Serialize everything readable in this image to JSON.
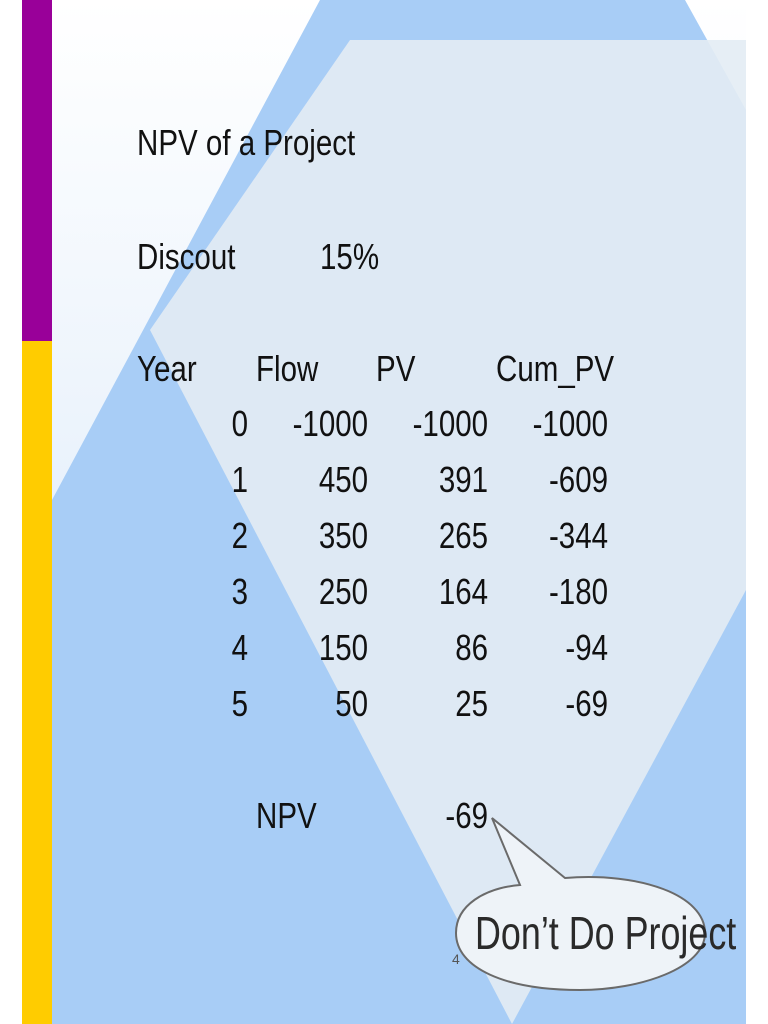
{
  "title": "NPV of a Project",
  "discount": {
    "label": "Discout",
    "value": "15%"
  },
  "table": {
    "headers": [
      "Year",
      "Flow",
      "PV",
      "Cum_PV"
    ],
    "rows": [
      [
        "0",
        "-1000",
        "-1000",
        "-1000"
      ],
      [
        "1",
        "450",
        "391",
        "-609"
      ],
      [
        "2",
        "350",
        "265",
        "-344"
      ],
      [
        "3",
        "250",
        "164",
        "-180"
      ],
      [
        "4",
        "150",
        "86",
        "-94"
      ],
      [
        "5",
        "50",
        "25",
        "-69"
      ]
    ]
  },
  "npv": {
    "label": "NPV",
    "value": "-69"
  },
  "callout": {
    "text": "Don’t Do Project"
  },
  "page_number": "4",
  "colors": {
    "accent_purple": "#990099",
    "accent_yellow": "#ffcc00",
    "diamond_blue": "#a8cdf6",
    "diamond_light": "#e3ecf4"
  }
}
